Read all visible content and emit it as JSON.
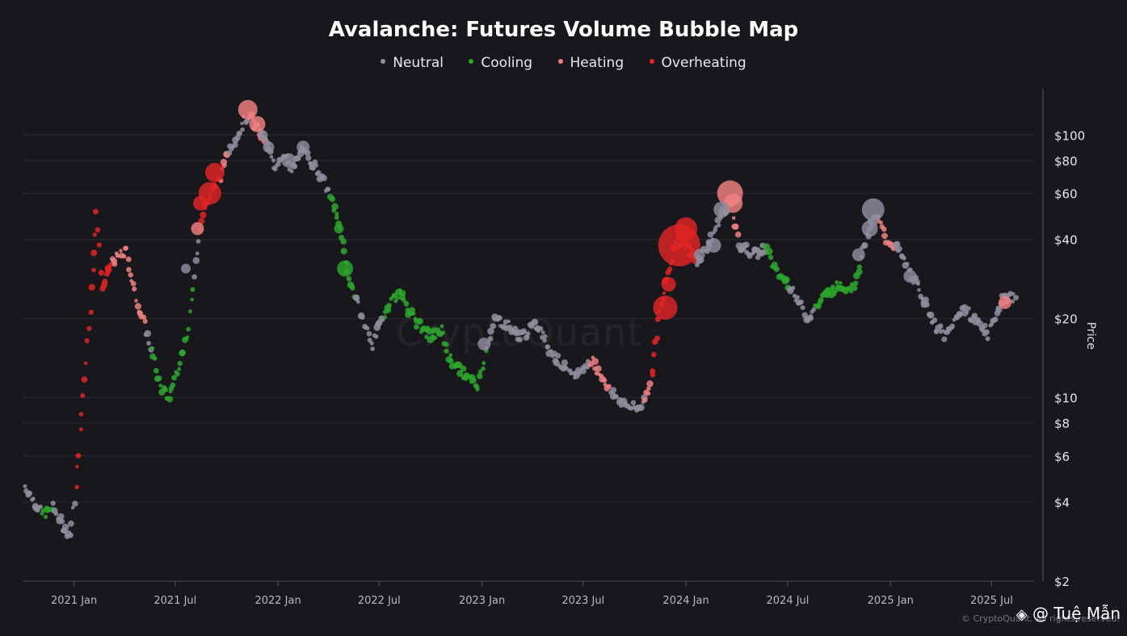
{
  "chart_data": {
    "type": "scatter",
    "title": "Avalanche: Futures Volume Bubble Map",
    "ylabel": "Price",
    "y_scale": "log",
    "ylim": [
      2,
      150
    ],
    "xlim": [
      "2020-10-01",
      "2025-09-15"
    ],
    "legend_position": "top-center",
    "legend": [
      {
        "name": "Neutral",
        "color": "#8e8e9e"
      },
      {
        "name": "Cooling",
        "color": "#2da62d"
      },
      {
        "name": "Heating",
        "color": "#f08080"
      },
      {
        "name": "Overheating",
        "color": "#e02424"
      }
    ],
    "x_ticks": [
      {
        "date": "2021-01-01",
        "label": "2021 Jan"
      },
      {
        "date": "2021-07-01",
        "label": "2021 Jul"
      },
      {
        "date": "2022-01-01",
        "label": "2022 Jan"
      },
      {
        "date": "2022-07-01",
        "label": "2022 Jul"
      },
      {
        "date": "2023-01-01",
        "label": "2023 Jan"
      },
      {
        "date": "2023-07-01",
        "label": "2023 Jul"
      },
      {
        "date": "2024-01-01",
        "label": "2024 Jan"
      },
      {
        "date": "2024-07-01",
        "label": "2024 Jul"
      },
      {
        "date": "2025-01-01",
        "label": "2025 Jan"
      },
      {
        "date": "2025-07-01",
        "label": "2025 Jul"
      }
    ],
    "y_ticks": [
      {
        "value": 2,
        "label": "$2"
      },
      {
        "value": 4,
        "label": "$4"
      },
      {
        "value": 6,
        "label": "$6"
      },
      {
        "value": 8,
        "label": "$8"
      },
      {
        "value": 10,
        "label": "$10"
      },
      {
        "value": 20,
        "label": "$20"
      },
      {
        "value": 40,
        "label": "$40"
      },
      {
        "value": 60,
        "label": "$60"
      },
      {
        "value": 80,
        "label": "$80"
      },
      {
        "value": 100,
        "label": "$100"
      }
    ],
    "grid": true,
    "anchors": [
      [
        "2020-10-05",
        4.6,
        "Neutral"
      ],
      [
        "2020-10-20",
        4.1,
        "Neutral"
      ],
      [
        "2020-11-05",
        3.6,
        "Cooling"
      ],
      [
        "2020-11-25",
        3.8,
        "Neutral"
      ],
      [
        "2020-12-10",
        3.3,
        "Neutral"
      ],
      [
        "2020-12-25",
        3.0,
        "Neutral"
      ],
      [
        "2021-01-05",
        4.5,
        "Overheating"
      ],
      [
        "2021-01-20",
        12.0,
        "Overheating"
      ],
      [
        "2021-02-05",
        30.0,
        "Overheating"
      ],
      [
        "2021-02-10",
        52.0,
        "Overheating"
      ],
      [
        "2021-02-20",
        26.0,
        "Overheating"
      ],
      [
        "2021-03-10",
        33.0,
        "Heating"
      ],
      [
        "2021-04-05",
        36.0,
        "Heating"
      ],
      [
        "2021-04-20",
        25.0,
        "Heating"
      ],
      [
        "2021-05-10",
        18.0,
        "Neutral"
      ],
      [
        "2021-05-20",
        15.0,
        "Cooling"
      ],
      [
        "2021-06-05",
        11.0,
        "Cooling"
      ],
      [
        "2021-06-20",
        10.0,
        "Cooling"
      ],
      [
        "2021-07-10",
        14.0,
        "Cooling"
      ],
      [
        "2021-07-25",
        18.0,
        "Cooling"
      ],
      [
        "2021-08-05",
        30.0,
        "Neutral"
      ],
      [
        "2021-08-15",
        45.0,
        "Overheating"
      ],
      [
        "2021-08-25",
        55.0,
        "Overheating"
      ],
      [
        "2021-09-05",
        60.0,
        "Overheating"
      ],
      [
        "2021-09-20",
        70.0,
        "Heating"
      ],
      [
        "2021-10-05",
        88.0,
        "Neutral"
      ],
      [
        "2021-10-20",
        100.0,
        "Neutral"
      ],
      [
        "2021-11-10",
        120.0,
        "Heating"
      ],
      [
        "2021-11-25",
        105.0,
        "Heating"
      ],
      [
        "2021-12-10",
        95.0,
        "Neutral"
      ],
      [
        "2021-12-25",
        75.0,
        "Neutral"
      ],
      [
        "2022-01-10",
        85.0,
        "Neutral"
      ],
      [
        "2022-01-25",
        72.0,
        "Neutral"
      ],
      [
        "2022-02-10",
        88.0,
        "Neutral"
      ],
      [
        "2022-03-01",
        80.0,
        "Neutral"
      ],
      [
        "2022-03-20",
        70.0,
        "Neutral"
      ],
      [
        "2022-04-05",
        58.0,
        "Cooling"
      ],
      [
        "2022-04-25",
        42.0,
        "Cooling"
      ],
      [
        "2022-05-05",
        30.0,
        "Cooling"
      ],
      [
        "2022-05-20",
        24.0,
        "Neutral"
      ],
      [
        "2022-06-05",
        19.0,
        "Neutral"
      ],
      [
        "2022-06-20",
        16.0,
        "Neutral"
      ],
      [
        "2022-07-10",
        21.0,
        "Cooling"
      ],
      [
        "2022-07-25",
        24.0,
        "Cooling"
      ],
      [
        "2022-08-10",
        25.0,
        "Cooling"
      ],
      [
        "2022-08-25",
        21.0,
        "Cooling"
      ],
      [
        "2022-09-10",
        19.0,
        "Cooling"
      ],
      [
        "2022-10-01",
        17.0,
        "Cooling"
      ],
      [
        "2022-10-20",
        18.0,
        "Cooling"
      ],
      [
        "2022-11-05",
        14.0,
        "Cooling"
      ],
      [
        "2022-12-05",
        12.0,
        "Cooling"
      ],
      [
        "2022-12-25",
        11.0,
        "Cooling"
      ],
      [
        "2023-01-10",
        16.0,
        "Neutral"
      ],
      [
        "2023-01-25",
        20.0,
        "Neutral"
      ],
      [
        "2023-02-15",
        19.0,
        "Neutral"
      ],
      [
        "2023-03-10",
        17.0,
        "Neutral"
      ],
      [
        "2023-04-10",
        19.0,
        "Neutral"
      ],
      [
        "2023-05-05",
        15.0,
        "Neutral"
      ],
      [
        "2023-06-10",
        12.0,
        "Neutral"
      ],
      [
        "2023-07-05",
        13.0,
        "Neutral"
      ],
      [
        "2023-07-15",
        14.0,
        "Heating"
      ],
      [
        "2023-08-05",
        12.0,
        "Heating"
      ],
      [
        "2023-08-20",
        10.5,
        "Neutral"
      ],
      [
        "2023-09-10",
        9.5,
        "Neutral"
      ],
      [
        "2023-10-05",
        9.0,
        "Neutral"
      ],
      [
        "2023-10-20",
        10.0,
        "Heating"
      ],
      [
        "2023-11-01",
        12.0,
        "Overheating"
      ],
      [
        "2023-11-15",
        21.0,
        "Overheating"
      ],
      [
        "2023-12-01",
        30.0,
        "Overheating"
      ],
      [
        "2023-12-15",
        40.0,
        "Overheating"
      ],
      [
        "2024-01-01",
        38.0,
        "Overheating"
      ],
      [
        "2024-01-20",
        33.0,
        "Neutral"
      ],
      [
        "2024-02-10",
        38.0,
        "Neutral"
      ],
      [
        "2024-03-05",
        50.0,
        "Neutral"
      ],
      [
        "2024-03-20",
        55.0,
        "Heating"
      ],
      [
        "2024-04-05",
        38.0,
        "Neutral"
      ],
      [
        "2024-05-05",
        35.0,
        "Neutral"
      ],
      [
        "2024-05-25",
        38.0,
        "Cooling"
      ],
      [
        "2024-06-10",
        30.0,
        "Cooling"
      ],
      [
        "2024-07-05",
        27.0,
        "Neutral"
      ],
      [
        "2024-08-05",
        20.0,
        "Neutral"
      ],
      [
        "2024-08-20",
        22.0,
        "Cooling"
      ],
      [
        "2024-09-10",
        25.0,
        "Cooling"
      ],
      [
        "2024-10-05",
        27.0,
        "Cooling"
      ],
      [
        "2024-10-25",
        26.0,
        "Cooling"
      ],
      [
        "2024-11-10",
        34.0,
        "Neutral"
      ],
      [
        "2024-11-25",
        45.0,
        "Neutral"
      ],
      [
        "2024-12-10",
        48.0,
        "Heating"
      ],
      [
        "2024-12-25",
        40.0,
        "Heating"
      ],
      [
        "2025-01-10",
        38.0,
        "Neutral"
      ],
      [
        "2025-02-05",
        30.0,
        "Neutral"
      ],
      [
        "2025-03-01",
        24.0,
        "Neutral"
      ],
      [
        "2025-03-20",
        19.0,
        "Neutral"
      ],
      [
        "2025-04-10",
        17.0,
        "Neutral"
      ],
      [
        "2025-05-10",
        22.0,
        "Neutral"
      ],
      [
        "2025-06-10",
        19.0,
        "Neutral"
      ],
      [
        "2025-06-25",
        17.5,
        "Neutral"
      ],
      [
        "2025-07-20",
        24.0,
        "Neutral"
      ],
      [
        "2025-08-15",
        24.0,
        "Heating"
      ]
    ],
    "bubbles": [
      [
        "2021-11-08",
        125,
        12,
        "Heating"
      ],
      [
        "2021-11-25",
        110,
        10,
        "Heating"
      ],
      [
        "2021-09-10",
        72,
        12,
        "Overheating"
      ],
      [
        "2021-09-01",
        60,
        14,
        "Overheating"
      ],
      [
        "2021-08-15",
        55,
        9,
        "Overheating"
      ],
      [
        "2021-08-10",
        44,
        8,
        "Heating"
      ],
      [
        "2021-07-20",
        31,
        6,
        "Neutral"
      ],
      [
        "2023-12-20",
        38,
        26,
        "Overheating"
      ],
      [
        "2024-01-01",
        44,
        14,
        "Overheating"
      ],
      [
        "2023-11-25",
        22,
        15,
        "Overheating"
      ],
      [
        "2023-12-01",
        27,
        9,
        "Overheating"
      ],
      [
        "2024-03-20",
        60,
        16,
        "Heating"
      ],
      [
        "2024-03-25",
        55,
        12,
        "Heating"
      ],
      [
        "2024-03-05",
        52,
        10,
        "Neutral"
      ],
      [
        "2024-12-01",
        52,
        14,
        "Neutral"
      ],
      [
        "2024-11-25",
        44,
        10,
        "Neutral"
      ],
      [
        "2022-05-01",
        31,
        10,
        "Cooling"
      ],
      [
        "2022-04-20",
        44,
        6,
        "Cooling"
      ],
      [
        "2023-01-05",
        16,
        8,
        "Neutral"
      ],
      [
        "2024-11-05",
        35,
        8,
        "Neutral"
      ],
      [
        "2025-02-05",
        29,
        8,
        "Neutral"
      ],
      [
        "2025-07-25",
        23,
        8,
        "Heating"
      ],
      [
        "2024-01-25",
        35,
        7,
        "Neutral"
      ],
      [
        "2024-02-20",
        38,
        9,
        "Neutral"
      ],
      [
        "2022-02-15",
        90,
        8,
        "Neutral"
      ],
      [
        "2022-01-20",
        80,
        9,
        "Neutral"
      ],
      [
        "2021-12-15",
        90,
        7,
        "Neutral"
      ],
      [
        "2021-12-05",
        100,
        6,
        "Neutral"
      ]
    ]
  },
  "watermark": "CryptoQuant",
  "footer": {
    "copyright": "© CryptoQuant. All rights reserved.",
    "credit": "@ Tuệ Mẫn"
  }
}
